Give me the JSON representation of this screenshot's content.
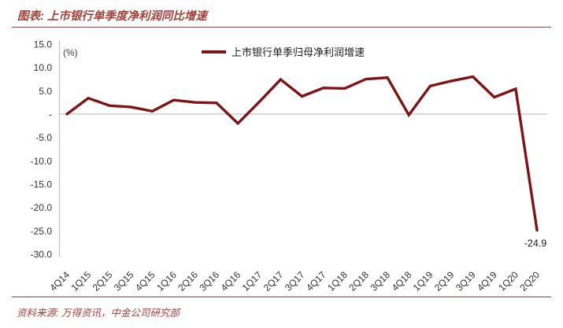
{
  "header": {
    "title": "图表: 上市银行单季度净利润同比增速"
  },
  "footer": {
    "source": "资料来源: 万得资讯，中金公司研究部"
  },
  "colors": {
    "accent": "#A2403C",
    "line": "#7E1416",
    "axis": "#C2C2C2",
    "tick_text": "#303030"
  },
  "chart_data": {
    "type": "line",
    "title": "上市银行单季度净利润同比增速",
    "unit_label": "(%)",
    "legend": {
      "label": "上市银行单季归母净利润增速",
      "position": "top-center"
    },
    "categories": [
      "4Q14",
      "1Q15",
      "2Q15",
      "3Q15",
      "4Q15",
      "1Q16",
      "2Q16",
      "3Q16",
      "4Q16",
      "1Q17",
      "2Q17",
      "3Q17",
      "4Q17",
      "1Q18",
      "2Q18",
      "3Q18",
      "4Q18",
      "1Q19",
      "2Q19",
      "3Q19",
      "4Q19",
      "1Q20",
      "2Q20"
    ],
    "series": [
      {
        "name": "上市银行单季归母净利润增速",
        "color": "#7E1416",
        "values": [
          0.0,
          3.4,
          1.8,
          1.5,
          0.6,
          3.0,
          2.5,
          2.4,
          -2.0,
          2.6,
          7.4,
          3.8,
          5.6,
          5.5,
          7.5,
          7.8,
          -0.2,
          6.0,
          7.1,
          8.0,
          3.6,
          5.4,
          -24.9
        ]
      }
    ],
    "ylim": [
      -30.0,
      15.0
    ],
    "yticks": [
      15,
      10,
      5,
      0,
      -5,
      -10,
      -15,
      -20,
      -25,
      -30
    ],
    "ytick_labels": [
      "15.0",
      "10.0",
      "5.0",
      "-",
      "-5.0",
      "-10.0",
      "-15.0",
      "-20.0",
      "-25.0",
      "-30.0"
    ],
    "grid": "zero-line-only",
    "legend_position": "top-center",
    "annotations": [
      {
        "index": 22,
        "category": "2Q20",
        "text": "-24.9"
      }
    ]
  }
}
